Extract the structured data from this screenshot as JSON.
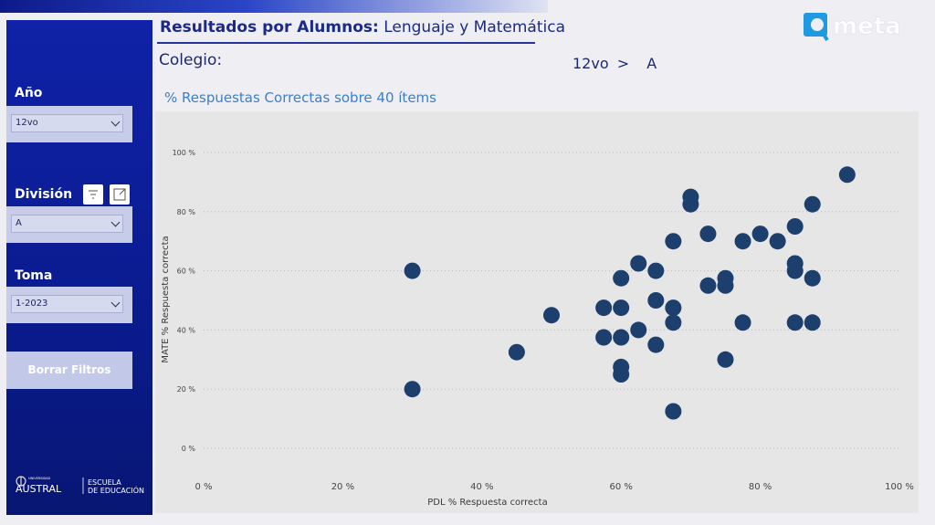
{
  "header": {
    "title_bold": "Resultados por Alumnos:",
    "title_rest": "Lenguaje y Matemática",
    "colegio_label": "Colegio:",
    "curso": "12vo",
    "breadcrumb_sep": ">",
    "division_value": "A",
    "subtitle": "% Respuestas Correctas sobre 40 ítems"
  },
  "brand": {
    "meta_text": "meta",
    "austral_small": "UNIVERSIDAD",
    "austral_name": "AUSTRAL",
    "escuela_line1": "ESCUELA",
    "escuela_line2": "DE EDUCACIÓN"
  },
  "filters": {
    "anio": {
      "label": "Año",
      "value": "12vo"
    },
    "division": {
      "label": "División",
      "value": "A"
    },
    "toma": {
      "label": "Toma",
      "value": "1-2023"
    },
    "clear_button": "Borrar Filtros"
  },
  "icons": {
    "filter": "filter-icon",
    "expand": "focus-mode-icon"
  },
  "colors": {
    "marker": "#1c3f6e",
    "accent": "#1b2a8a",
    "sidebar": "#0f22a8"
  },
  "chart_data": {
    "type": "scatter",
    "xlabel": "PDL % Respuesta correcta",
    "ylabel": "MATE % Respuesta correcta",
    "xlim": [
      0,
      100
    ],
    "ylim": [
      0,
      100
    ],
    "xticks": [
      "0 %",
      "20 %",
      "40 %",
      "60 %",
      "80 %",
      "100 %"
    ],
    "yticks": [
      "0 %",
      "20 %",
      "40 %",
      "60 %",
      "80 %",
      "100 %"
    ],
    "grid": true,
    "points": [
      {
        "x": 30,
        "y": 60
      },
      {
        "x": 30,
        "y": 20
      },
      {
        "x": 45,
        "y": 32.5
      },
      {
        "x": 50,
        "y": 45
      },
      {
        "x": 57.5,
        "y": 47.5
      },
      {
        "x": 57.5,
        "y": 37.5
      },
      {
        "x": 60,
        "y": 57.5
      },
      {
        "x": 60,
        "y": 47.5
      },
      {
        "x": 60,
        "y": 37.5
      },
      {
        "x": 60,
        "y": 27.5
      },
      {
        "x": 60,
        "y": 25
      },
      {
        "x": 62.5,
        "y": 62.5
      },
      {
        "x": 62.5,
        "y": 40
      },
      {
        "x": 65,
        "y": 60
      },
      {
        "x": 65,
        "y": 50
      },
      {
        "x": 65,
        "y": 35
      },
      {
        "x": 67.5,
        "y": 70
      },
      {
        "x": 67.5,
        "y": 47.5
      },
      {
        "x": 67.5,
        "y": 42.5
      },
      {
        "x": 67.5,
        "y": 12.5
      },
      {
        "x": 70,
        "y": 85
      },
      {
        "x": 70,
        "y": 82.5
      },
      {
        "x": 72.5,
        "y": 72.5
      },
      {
        "x": 72.5,
        "y": 55
      },
      {
        "x": 75,
        "y": 57.5
      },
      {
        "x": 75,
        "y": 55
      },
      {
        "x": 75,
        "y": 30
      },
      {
        "x": 77.5,
        "y": 70
      },
      {
        "x": 77.5,
        "y": 42.5
      },
      {
        "x": 80,
        "y": 72.5
      },
      {
        "x": 82.5,
        "y": 70
      },
      {
        "x": 85,
        "y": 75
      },
      {
        "x": 85,
        "y": 62.5
      },
      {
        "x": 85,
        "y": 60
      },
      {
        "x": 85,
        "y": 42.5
      },
      {
        "x": 87.5,
        "y": 82.5
      },
      {
        "x": 87.5,
        "y": 57.5
      },
      {
        "x": 87.5,
        "y": 42.5
      },
      {
        "x": 92.5,
        "y": 92.5
      }
    ]
  }
}
